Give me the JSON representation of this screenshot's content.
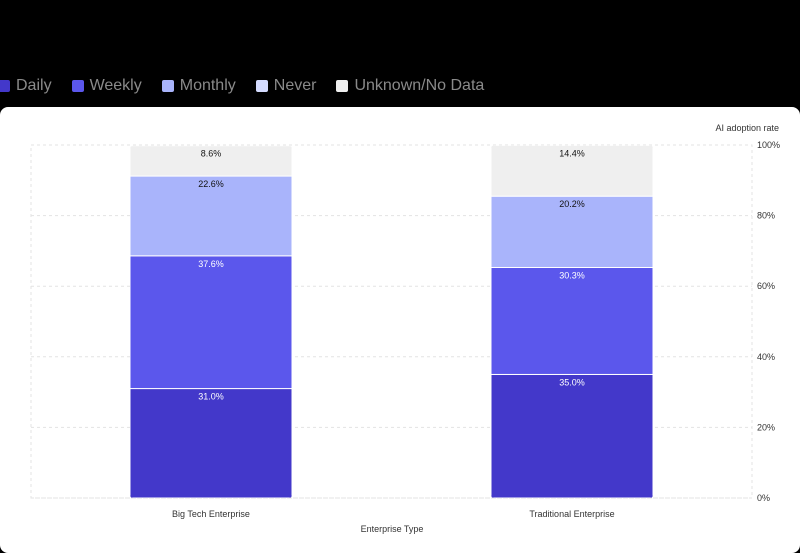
{
  "chart_data": {
    "type": "bar",
    "stacked": true,
    "categories": [
      "Big Tech Enterprise",
      "Traditional Enterprise"
    ],
    "series": [
      {
        "name": "Daily",
        "color": "#4338ca",
        "values": [
          31.0,
          35.0
        ]
      },
      {
        "name": "Weekly",
        "color": "#5b57ec",
        "values": [
          37.6,
          30.3
        ]
      },
      {
        "name": "Monthly",
        "color": "#a9b4fb",
        "values": [
          22.6,
          20.2
        ]
      },
      {
        "name": "Never",
        "color": "#d5dcff",
        "values": [
          0,
          0
        ]
      },
      {
        "name": "Unknown/No Data",
        "color": "#efefef",
        "values": [
          8.6,
          14.4
        ]
      }
    ],
    "xlabel": "Enterprise Type",
    "ylabel": "AI adoption rate",
    "ylim": [
      0,
      100
    ],
    "yticks": [
      "0%",
      "20%",
      "40%",
      "60%",
      "80%",
      "100%"
    ],
    "grid": true,
    "legend": "top-left"
  }
}
